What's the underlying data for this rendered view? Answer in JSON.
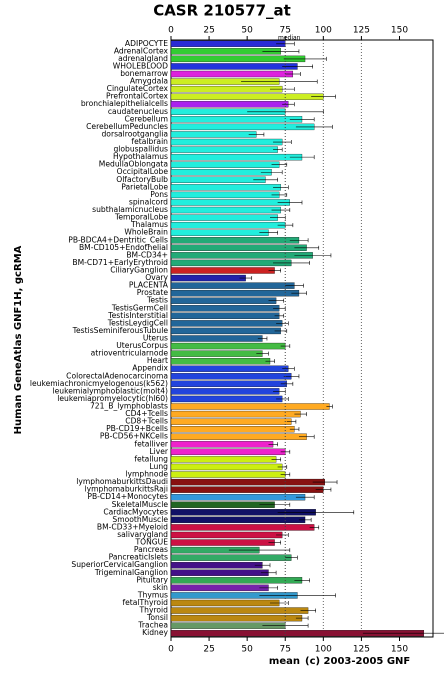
{
  "chart_data": {
    "type": "hbar_error",
    "title": "CASR 210577_at",
    "ylabel": "Human GeneAtlas GNF1H, gcRMA",
    "xlabel": "mean",
    "credit": "(c) 2003-2005 GNF",
    "median_label": "median",
    "median": 75,
    "ref_lines": [
      100,
      125
    ],
    "xlim": [
      0,
      172
    ],
    "xticks": [
      0,
      25,
      50,
      75,
      100,
      125,
      150
    ],
    "categories": [
      "ADIPOCYTE",
      "AdrenalCortex",
      "adrenalgland",
      "WHOLEBLOOD",
      "bonemarrow",
      "Amygdala",
      "CingulateCortex",
      "PrefrontalCortex",
      "bronchialepithelialcells",
      "caudatenucleus",
      "Cerebellum",
      "CerebellumPeduncles",
      "dorsalrootganglia",
      "fetalbrain",
      "globuspallidus",
      "Hypothalamus",
      "MedullaOblongata",
      "OccipitalLobe",
      "OlfactoryBulb",
      "ParietalLobe",
      "Pons",
      "spinalcord",
      "subthalamicnucleus",
      "TemporalLobe",
      "Thalamus",
      "WholeBrain",
      "PB-BDCA4+Dentritic_Cells",
      "BM-CD105+Endothelial",
      "BM-CD34+",
      "BM-CD71+EarlyErythroid",
      "CiliaryGanglion",
      "Ovary",
      "PLACENTA",
      "Prostate",
      "Testis",
      "TestisGermCell",
      "TestisInterstitial",
      "TestisLeydigCell",
      "TestisSeminiferousTubule",
      "Uterus",
      "UterusCorpus",
      "atrioventricularnode",
      "Heart",
      "Appendix",
      "ColorectalAdenocarcinoma",
      "leukemiachronicmyelogenous(k562)",
      "leukemialymphoblastic(molt4)",
      "leukemiapromyelocytic(hl60)",
      "721_B_lymphoblasts",
      "CD4+Tcells",
      "CD8+Tcells",
      "PB-CD19+Bcells",
      "PB-CD56+NKCells",
      "fetalliver",
      "Liver",
      "fetallung",
      "Lung",
      "lymphnode",
      "lymphomaburkittsDaudi",
      "lymphomaburkittsRaji",
      "PB-CD14+Monocytes",
      "SkeletalMuscle",
      "CardiacMyocytes",
      "SmoothMuscle",
      "BM-CD33+Myeloid",
      "salivarygland",
      "TONGUE",
      "Pancreas",
      "PancreaticIslets",
      "SuperiorCervicalGanglion",
      "TrigeminalGanglion",
      "Pituitary",
      "skin",
      "Thymus",
      "fetalThyroid",
      "Thyroid",
      "Tonsil",
      "Trachea",
      "Kidney"
    ],
    "values": [
      75,
      72,
      88,
      83,
      80,
      71,
      73,
      100,
      77,
      75,
      86,
      94,
      56,
      73,
      70,
      86,
      71,
      66,
      62,
      72,
      71,
      78,
      72,
      70,
      75,
      64,
      84,
      89,
      93,
      79,
      68,
      49,
      81,
      84,
      69,
      71,
      71,
      73,
      72,
      60,
      75,
      60,
      65,
      77,
      79,
      76,
      71,
      73,
      104,
      85,
      79,
      81,
      89,
      67,
      75,
      69,
      73,
      75,
      101,
      100,
      88,
      68,
      95,
      88,
      94,
      73,
      68,
      58,
      79,
      60,
      64,
      86,
      64,
      83,
      71,
      90,
      86,
      75,
      166
    ],
    "errors": [
      6,
      12,
      14,
      10,
      5,
      25,
      8,
      8,
      4,
      25,
      8,
      12,
      5,
      6,
      3,
      8,
      5,
      7,
      8,
      5,
      5,
      8,
      6,
      5,
      5,
      6,
      6,
      8,
      12,
      12,
      4,
      4,
      6,
      5,
      5,
      4,
      3,
      4,
      4,
      3,
      3,
      4,
      3,
      4,
      5,
      4,
      4,
      4,
      2,
      4,
      3,
      3,
      5,
      3,
      3,
      3,
      3,
      3,
      8,
      5,
      6,
      10,
      25,
      4,
      3,
      4,
      4,
      20,
      4,
      5,
      5,
      5,
      6,
      25,
      6,
      5,
      4,
      15,
      40
    ],
    "colors": [
      "#2a2ad6",
      "#33cc33",
      "#33cc33",
      "#2233dd",
      "#dd22dd",
      "#ccee22",
      "#ccee22",
      "#ccee22",
      "#aa22ee",
      "#22eedd",
      "#22eedd",
      "#22eedd",
      "#22eedd",
      "#22eedd",
      "#22eedd",
      "#22eedd",
      "#22eedd",
      "#22eedd",
      "#22eedd",
      "#22eedd",
      "#22eedd",
      "#22eedd",
      "#22eedd",
      "#22eedd",
      "#22eedd",
      "#22eedd",
      "#22aa77",
      "#22aa77",
      "#22aa77",
      "#22aa77",
      "#cc2222",
      "#2222aa",
      "#226699",
      "#226699",
      "#226699",
      "#226699",
      "#226699",
      "#226699",
      "#226699",
      "#226699",
      "#44bb44",
      "#44bb44",
      "#44bb44",
      "#2244dd",
      "#2244dd",
      "#2244dd",
      "#2244dd",
      "#2244dd",
      "#ffaa22",
      "#ffaa22",
      "#ffaa22",
      "#ffaa22",
      "#ffaa22",
      "#ee22cc",
      "#ee22cc",
      "#ccee11",
      "#ccee11",
      "#ccee11",
      "#881111",
      "#881111",
      "#3399dd",
      "#226622",
      "#111166",
      "#111166",
      "#cc1144",
      "#cc1144",
      "#cc1144",
      "#33aa66",
      "#33aa66",
      "#441188",
      "#441188",
      "#33aa55",
      "#7722aa",
      "#3399cc",
      "#bb8811",
      "#bb8811",
      "#bb8811",
      "#669966",
      "#881133"
    ]
  }
}
